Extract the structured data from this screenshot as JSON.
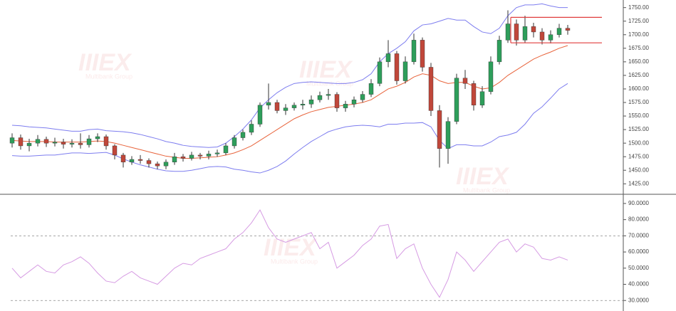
{
  "chart_data": [
    {
      "type": "candlestick",
      "open": [
        1500,
        1510,
        1495,
        1500,
        1507,
        1500,
        1502,
        1498,
        1500,
        1497,
        1508,
        1512,
        1495,
        1478,
        1465,
        1470,
        1468,
        1462,
        1458,
        1465,
        1475,
        1472,
        1478,
        1476,
        1480,
        1482,
        1495,
        1510,
        1520,
        1535,
        1570,
        1575,
        1560,
        1565,
        1570,
        1572,
        1580,
        1588,
        1590,
        1565,
        1572,
        1580,
        1590,
        1610,
        1650,
        1665,
        1615,
        1650,
        1690,
        1640,
        1560,
        1490,
        1540,
        1620,
        1610,
        1570,
        1595,
        1650,
        1690,
        1720,
        1690,
        1715,
        1705,
        1690,
        1700,
        1712
      ],
      "high": [
        1518,
        1516,
        1508,
        1515,
        1512,
        1510,
        1508,
        1507,
        1518,
        1515,
        1518,
        1516,
        1498,
        1482,
        1476,
        1478,
        1472,
        1466,
        1470,
        1482,
        1480,
        1484,
        1482,
        1486,
        1488,
        1500,
        1515,
        1525,
        1542,
        1575,
        1610,
        1580,
        1572,
        1575,
        1580,
        1588,
        1595,
        1600,
        1594,
        1578,
        1586,
        1596,
        1618,
        1658,
        1690,
        1670,
        1660,
        1702,
        1695,
        1648,
        1570,
        1548,
        1628,
        1635,
        1615,
        1605,
        1660,
        1698,
        1745,
        1728,
        1735,
        1722,
        1712,
        1708,
        1720,
        1718
      ],
      "low": [
        1492,
        1488,
        1485,
        1494,
        1493,
        1494,
        1490,
        1492,
        1490,
        1492,
        1502,
        1488,
        1470,
        1455,
        1460,
        1462,
        1455,
        1452,
        1452,
        1460,
        1466,
        1468,
        1470,
        1470,
        1475,
        1478,
        1490,
        1505,
        1515,
        1530,
        1562,
        1555,
        1552,
        1560,
        1562,
        1565,
        1575,
        1580,
        1558,
        1558,
        1566,
        1575,
        1585,
        1605,
        1640,
        1608,
        1610,
        1645,
        1632,
        1550,
        1455,
        1462,
        1535,
        1600,
        1560,
        1565,
        1590,
        1645,
        1685,
        1680,
        1685,
        1695,
        1682,
        1684,
        1695,
        1700
      ],
      "close": [
        1510,
        1495,
        1500,
        1507,
        1500,
        1502,
        1498,
        1500,
        1497,
        1508,
        1512,
        1495,
        1478,
        1465,
        1470,
        1468,
        1462,
        1458,
        1465,
        1475,
        1472,
        1478,
        1476,
        1480,
        1482,
        1495,
        1510,
        1520,
        1535,
        1570,
        1575,
        1560,
        1565,
        1570,
        1572,
        1580,
        1588,
        1590,
        1565,
        1572,
        1580,
        1590,
        1610,
        1650,
        1665,
        1615,
        1650,
        1690,
        1640,
        1560,
        1490,
        1540,
        1620,
        1610,
        1570,
        1595,
        1650,
        1690,
        1720,
        1690,
        1715,
        1705,
        1690,
        1700,
        1712,
        1708
      ],
      "up_color": "#2e9e5b",
      "down_color": "#c0473a",
      "series": [
        {
          "color": "#7d7def",
          "values": [
            1533,
            1532,
            1530,
            1529,
            1528,
            1526,
            1524,
            1522,
            1522,
            1525,
            1526,
            1523,
            1522,
            1521,
            1519,
            1516,
            1512,
            1508,
            1503,
            1500,
            1496,
            1494,
            1493,
            1492,
            1493,
            1500,
            1512,
            1526,
            1543,
            1565,
            1580,
            1593,
            1603,
            1610,
            1612,
            1613,
            1612,
            1611,
            1610,
            1610,
            1612,
            1617,
            1628,
            1650,
            1665,
            1675,
            1687,
            1707,
            1718,
            1720,
            1725,
            1730,
            1727,
            1727,
            1715,
            1705,
            1702,
            1712,
            1735,
            1750,
            1755,
            1755,
            1757,
            1753,
            1750,
            1750
          ]
        },
        {
          "color": "#e8643c",
          "values": [
            1505,
            1504,
            1503,
            1503,
            1503,
            1502,
            1502,
            1502,
            1502,
            1503,
            1504,
            1503,
            1500,
            1496,
            1492,
            1488,
            1484,
            1480,
            1476,
            1474,
            1472,
            1472,
            1473,
            1474,
            1475,
            1478,
            1482,
            1488,
            1495,
            1505,
            1515,
            1525,
            1535,
            1545,
            1552,
            1558,
            1562,
            1566,
            1568,
            1570,
            1572,
            1575,
            1580,
            1590,
            1600,
            1605,
            1612,
            1622,
            1628,
            1625,
            1615,
            1610,
            1612,
            1612,
            1605,
            1600,
            1602,
            1612,
            1625,
            1635,
            1645,
            1655,
            1662,
            1668,
            1675,
            1680
          ]
        },
        {
          "color": "#7d7def",
          "values": [
            1477,
            1476,
            1476,
            1477,
            1478,
            1478,
            1480,
            1482,
            1482,
            1481,
            1482,
            1483,
            1478,
            1471,
            1465,
            1460,
            1456,
            1452,
            1449,
            1448,
            1448,
            1450,
            1453,
            1456,
            1457,
            1456,
            1452,
            1450,
            1447,
            1445,
            1450,
            1457,
            1467,
            1480,
            1492,
            1503,
            1512,
            1521,
            1526,
            1530,
            1532,
            1533,
            1532,
            1530,
            1535,
            1535,
            1537,
            1537,
            1538,
            1530,
            1505,
            1490,
            1497,
            1497,
            1495,
            1495,
            1502,
            1512,
            1515,
            1520,
            1535,
            1555,
            1567,
            1583,
            1600,
            1610
          ]
        }
      ],
      "hlines": [
        1732,
        1685
      ],
      "hline_color": "#e03c3c",
      "ylim": [
        1407,
        1764
      ],
      "yticks": [
        {
          "value": 1750,
          "label": "1750.00"
        },
        {
          "value": 1725,
          "label": "1725.00"
        },
        {
          "value": 1700,
          "label": "1700.00"
        },
        {
          "value": 1675,
          "label": "1675.00"
        },
        {
          "value": 1650,
          "label": "1650.00"
        },
        {
          "value": 1625,
          "label": "1625.00"
        },
        {
          "value": 1600,
          "label": "1600.00"
        },
        {
          "value": 1575,
          "label": "1575.00"
        },
        {
          "value": 1550,
          "label": "1550.00"
        },
        {
          "value": 1525,
          "label": "1525.00"
        },
        {
          "value": 1500,
          "label": "1500.00"
        },
        {
          "value": 1475,
          "label": "1475.00"
        },
        {
          "value": 1450,
          "label": "1450.00"
        },
        {
          "value": 1425,
          "label": "1425.00"
        }
      ]
    },
    {
      "type": "line",
      "series": [
        {
          "color": "#d69be3",
          "values": [
            50,
            44,
            48,
            52,
            48,
            47,
            52,
            54,
            57,
            53,
            47,
            42,
            41,
            45,
            48,
            44,
            42,
            40,
            45,
            50,
            53,
            52,
            56,
            58,
            60,
            62,
            68,
            72,
            78,
            86,
            75,
            68,
            66,
            68,
            70,
            72,
            62,
            66,
            50,
            54,
            58,
            64,
            68,
            76,
            77,
            56,
            62,
            65,
            50,
            40,
            32,
            43,
            60,
            55,
            48,
            54,
            60,
            66,
            68,
            60,
            65,
            63,
            56,
            55,
            57,
            55
          ]
        }
      ],
      "levels": [
        70,
        30
      ],
      "ylim": [
        23.5,
        94.8
      ],
      "yticks": [
        {
          "value": 90,
          "label": "90.0000"
        },
        {
          "value": 80,
          "label": "80.0000"
        },
        {
          "value": 70,
          "label": "70.0000"
        },
        {
          "value": 60,
          "label": "60.0000"
        },
        {
          "value": 50,
          "label": "50.0000"
        },
        {
          "value": 40,
          "label": "40.0000"
        },
        {
          "value": 30,
          "label": "30.0000"
        }
      ]
    }
  ],
  "watermark": {
    "logo": "IIIEX",
    "caption": "Multibank Group"
  }
}
